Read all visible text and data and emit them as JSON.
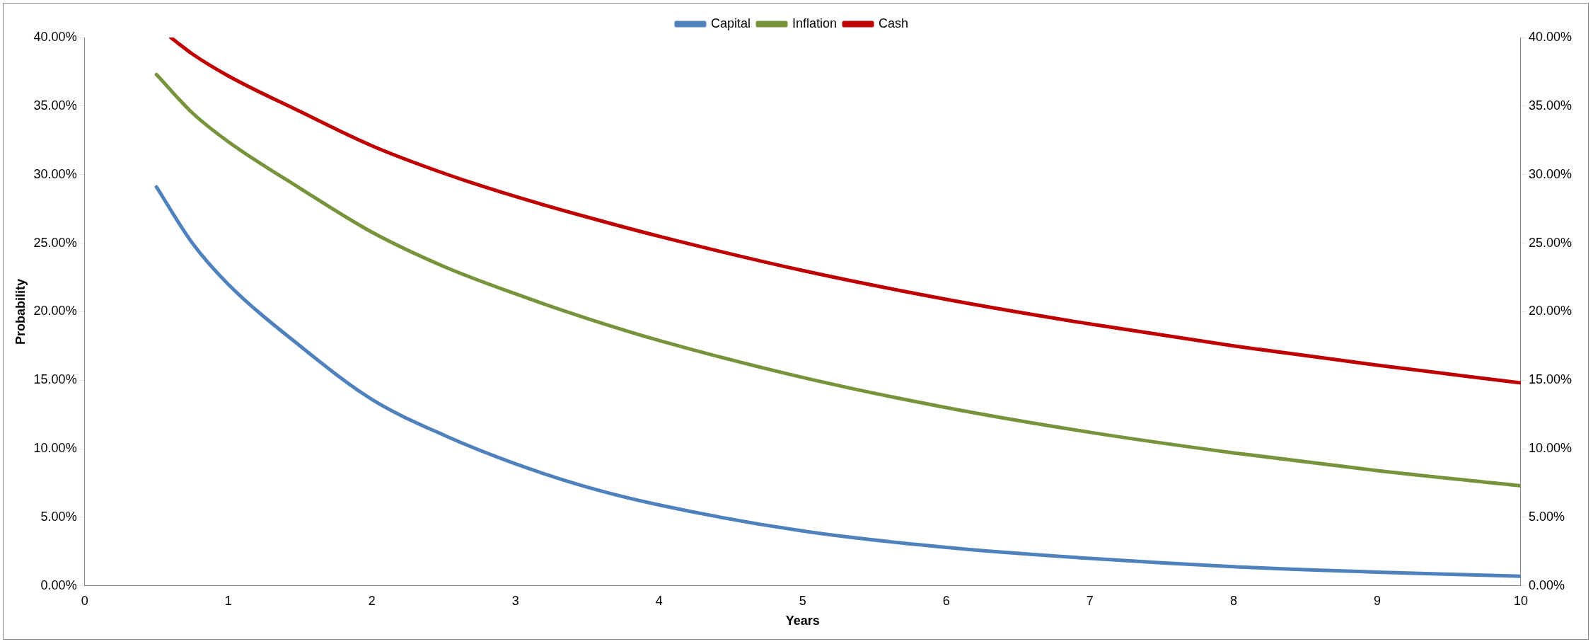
{
  "chart_data": {
    "type": "line",
    "xlabel": "Years",
    "ylabel": "Probability",
    "xlim": [
      0,
      10
    ],
    "xticks": [
      0,
      1,
      2,
      3,
      4,
      5,
      6,
      7,
      8,
      9,
      10
    ],
    "ylim": [
      0,
      40
    ],
    "yticks": [
      {
        "value": 0,
        "label": "0.00%"
      },
      {
        "value": 5,
        "label": "5.00%"
      },
      {
        "value": 10,
        "label": "10.00%"
      },
      {
        "value": 15,
        "label": "15.00%"
      },
      {
        "value": 20,
        "label": "20.00%"
      },
      {
        "value": 25,
        "label": "25.00%"
      },
      {
        "value": 30,
        "label": "30.00%"
      },
      {
        "value": 35,
        "label": "35.00%"
      },
      {
        "value": 40,
        "label": "40.00%"
      }
    ],
    "y2lim": [
      0,
      40
    ],
    "y2ticks": [
      {
        "value": 0,
        "label": "0.00%"
      },
      {
        "value": 5,
        "label": "5.00%"
      },
      {
        "value": 10,
        "label": "10.00%"
      },
      {
        "value": 15,
        "label": "15.00%"
      },
      {
        "value": 20,
        "label": "20.00%"
      },
      {
        "value": 25,
        "label": "25.00%"
      },
      {
        "value": 30,
        "label": "30.00%"
      },
      {
        "value": 35,
        "label": "35.00%"
      },
      {
        "value": 40,
        "label": "40.00%"
      }
    ],
    "legend": "top",
    "grid": false,
    "marker": "none",
    "line_style": "solid",
    "series": [
      {
        "name": "Capital",
        "color": "#4f81bd",
        "x": [
          0.5,
          0.75,
          1,
          1.5,
          2,
          2.5,
          3,
          3.5,
          4,
          5,
          6,
          7,
          8,
          9,
          10
        ],
        "values": [
          29.1,
          25,
          22,
          17.5,
          13.6,
          11,
          8.9,
          7.2,
          5.9,
          4.0,
          2.8,
          2.0,
          1.4,
          1.0,
          0.7
        ]
      },
      {
        "name": "Inflation",
        "color": "#77933c",
        "x": [
          0.5,
          0.75,
          1,
          1.5,
          2,
          2.5,
          3,
          3.5,
          4,
          5,
          6,
          7,
          8,
          9,
          10
        ],
        "values": [
          37.3,
          34.5,
          32.4,
          29,
          25.8,
          23.3,
          21.3,
          19.5,
          17.9,
          15.2,
          13.0,
          11.2,
          9.7,
          8.4,
          7.3
        ]
      },
      {
        "name": "Cash",
        "color": "#c00000",
        "x": [
          0.6,
          0.75,
          1,
          1.5,
          2,
          2.5,
          3,
          3.5,
          4,
          5,
          6,
          7,
          8,
          9,
          10
        ],
        "values": [
          40.0,
          38.8,
          37.2,
          34.6,
          32.1,
          30.1,
          28.4,
          26.9,
          25.5,
          23.0,
          20.9,
          19.1,
          17.5,
          16.1,
          14.8
        ]
      }
    ]
  }
}
